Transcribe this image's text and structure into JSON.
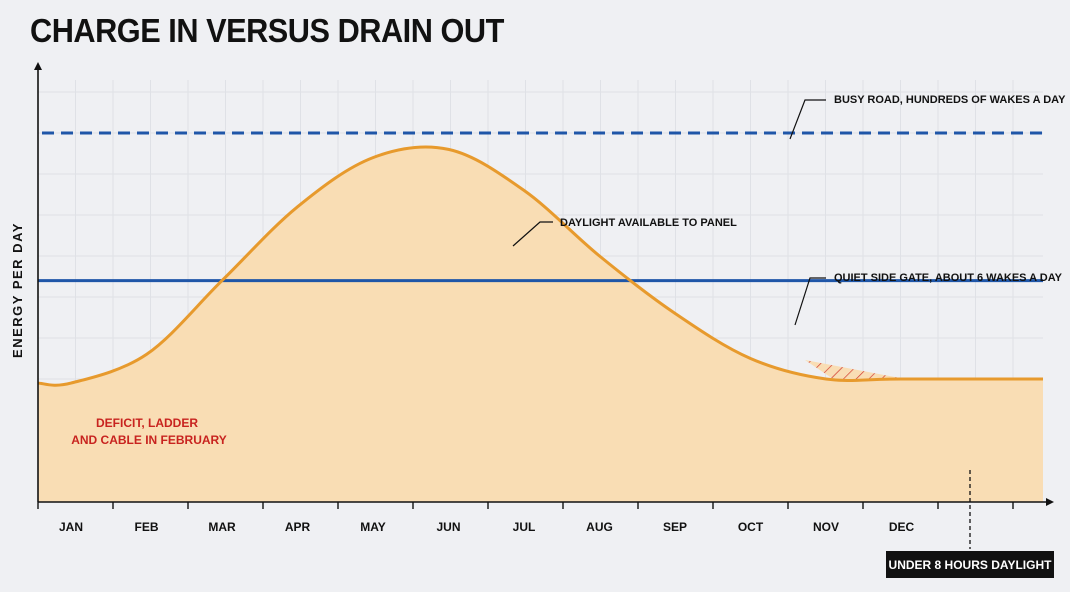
{
  "chart_data": {
    "type": "line",
    "title": "CHARGE IN VERSUS DRAIN OUT",
    "xlabel": "",
    "ylabel": "ENERGY PER DAY",
    "categories": [
      "JAN",
      "FEB",
      "MAR",
      "APR",
      "MAY",
      "JUN",
      "JUL",
      "AUG",
      "SEP",
      "OCT",
      "NOV",
      "DEC"
    ],
    "ylim": [
      0,
      10
    ],
    "grid": true,
    "series": [
      {
        "name": "DAYLIGHT AVAILABLE TO PANEL",
        "kind": "curve",
        "color": "#e79a2d",
        "fill": "#f9ddb4",
        "values": [
          2.9,
          3.6,
          5.4,
          7.2,
          8.4,
          8.6,
          7.6,
          6.0,
          4.6,
          3.5,
          3.0,
          3.0
        ]
      },
      {
        "name": "QUIET SIDE GATE, ABOUT 6 WAKES A DAY",
        "kind": "line",
        "style": "solid",
        "color": "#1f56a8",
        "value": 5.4
      },
      {
        "name": "BUSY ROAD, HUNDREDS OF WAKES A DAY",
        "kind": "line",
        "style": "dashed",
        "color": "#1f56a8",
        "value": 9.0
      }
    ],
    "annotations": {
      "deficit": [
        "DEFICIT, LADDER",
        "AND CABLE IN FEBRUARY"
      ],
      "threshold": "UNDER 8 HOURS DAYLIGHT"
    }
  }
}
